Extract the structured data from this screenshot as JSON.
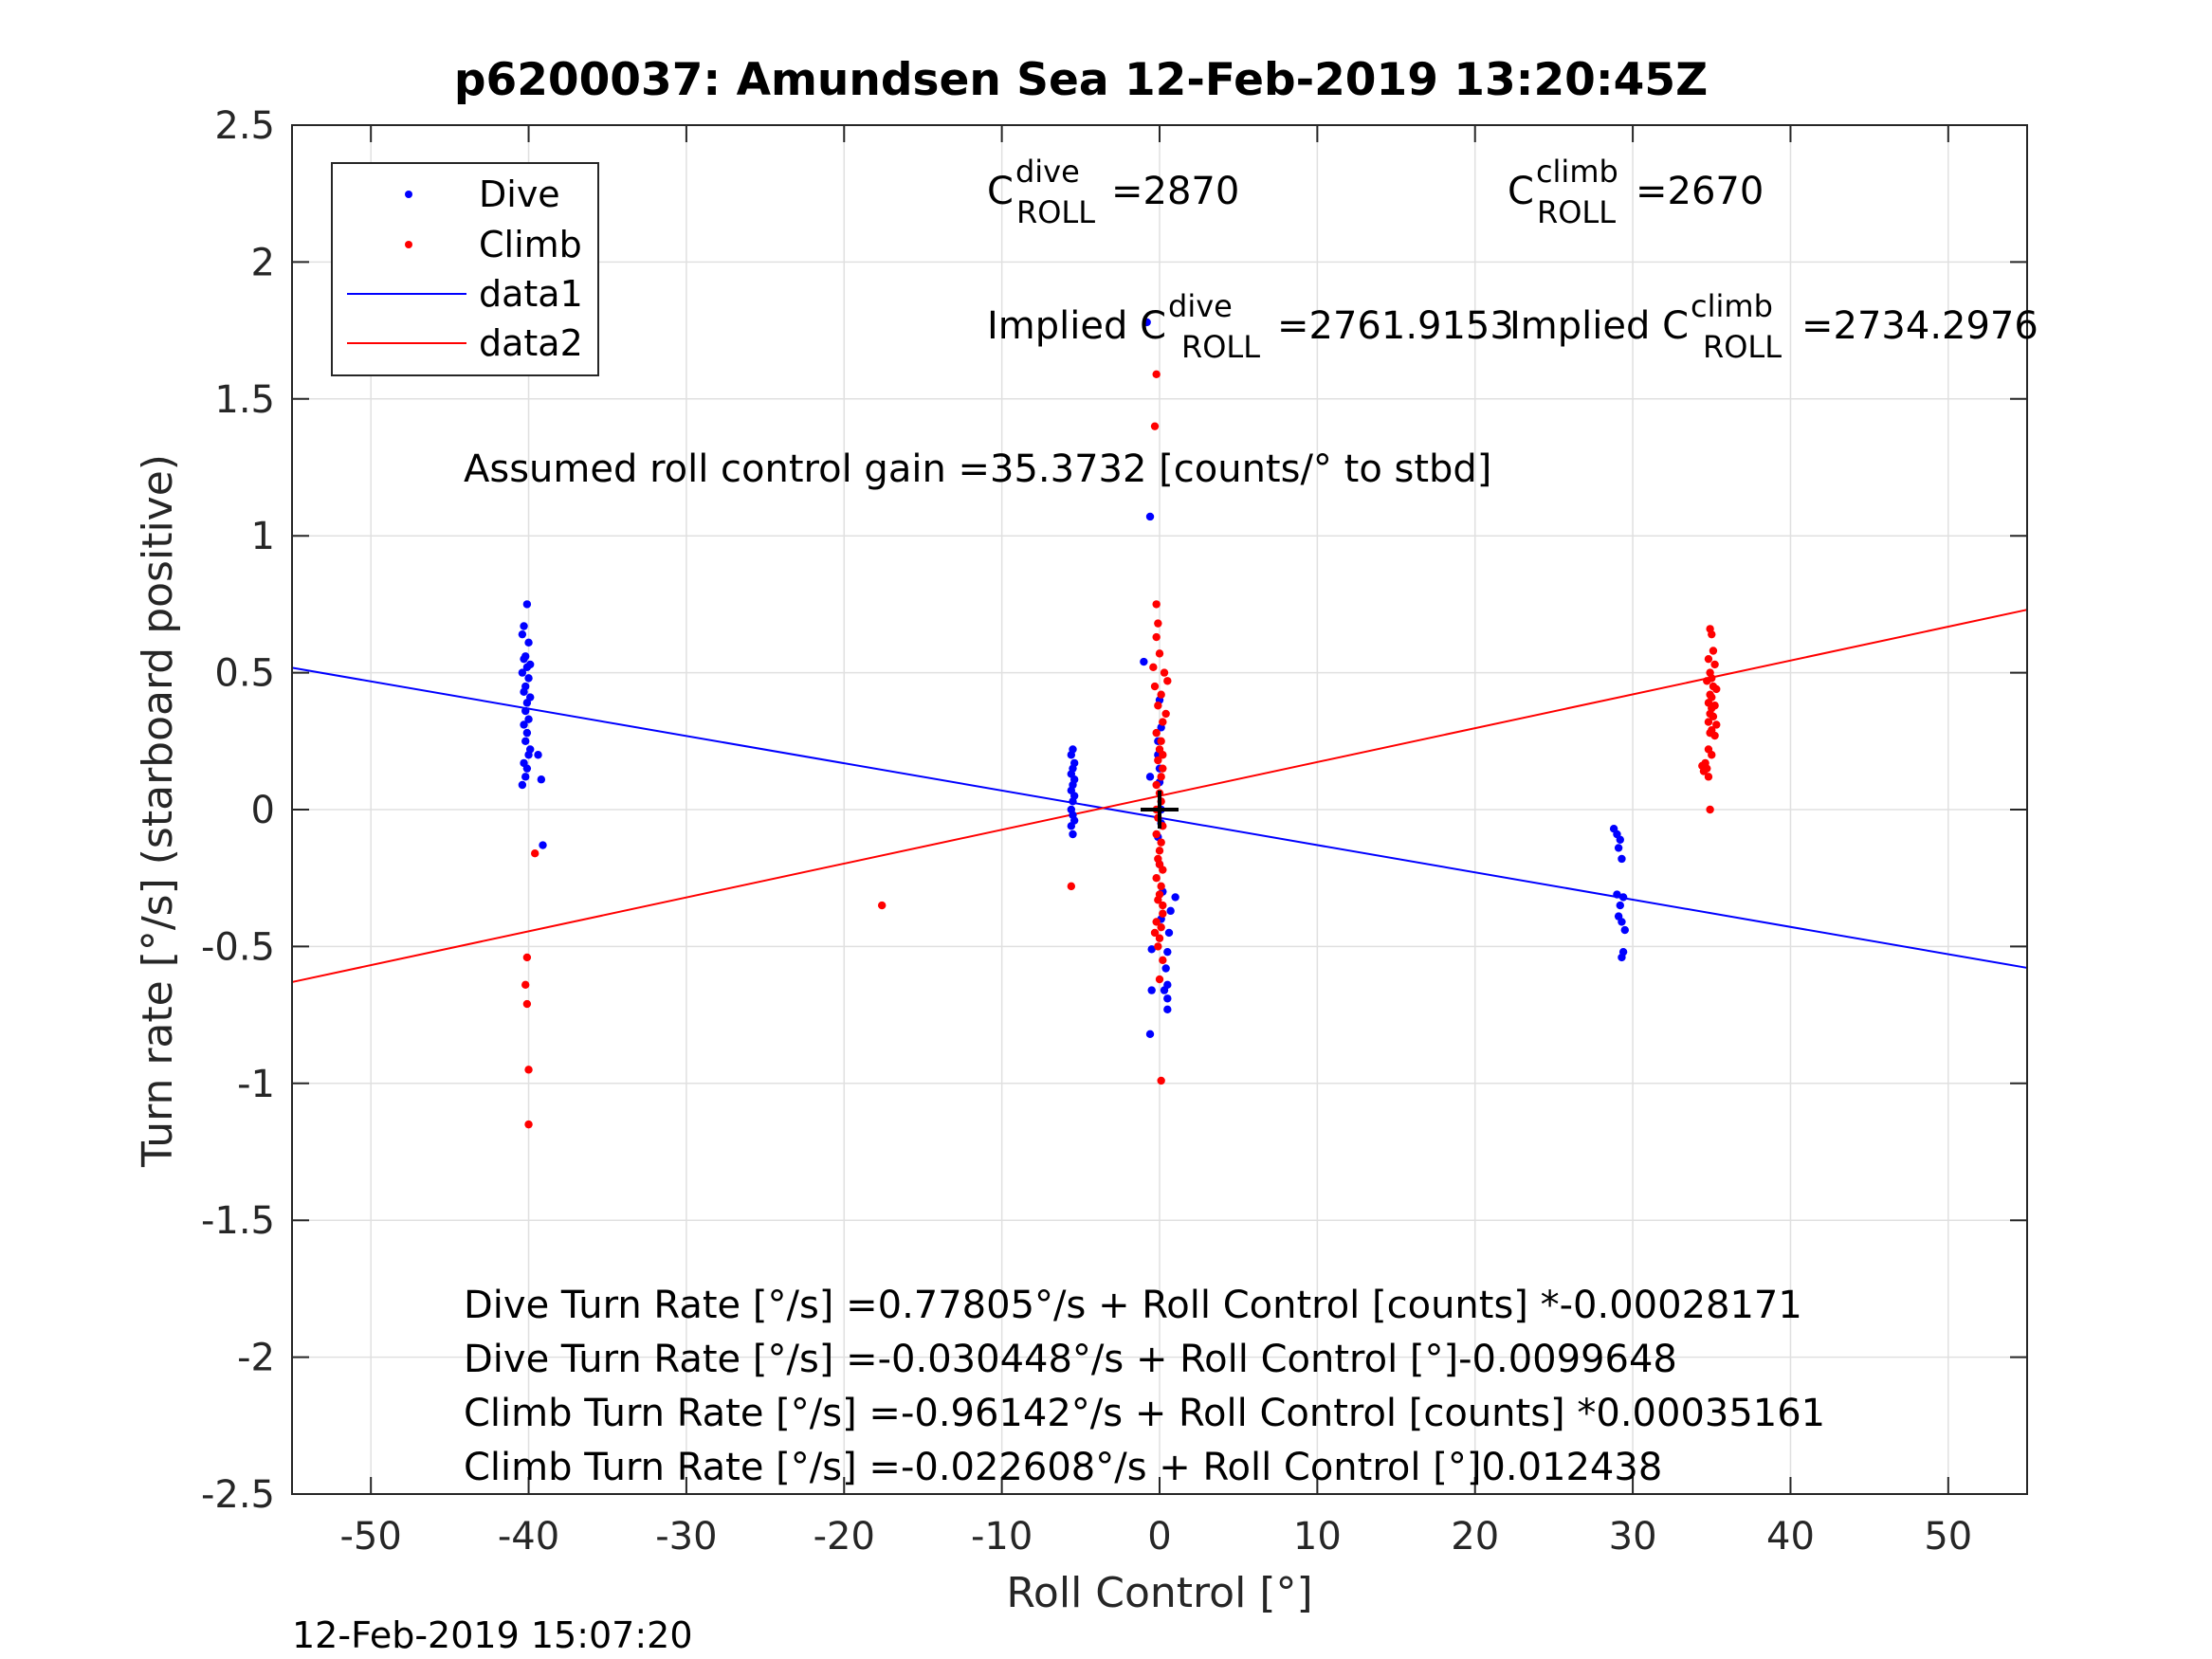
{
  "chart_data": {
    "type": "scatter",
    "title": "p6200037: Amundsen Sea 12-Feb-2019 13:20:45Z",
    "xlabel": "Roll Control [°]",
    "ylabel": "Turn rate [°/s] (starboard positive)",
    "xlim": [
      -55,
      55
    ],
    "ylim": [
      -2.5,
      2.5
    ],
    "xticks": [
      -50,
      -40,
      -30,
      -20,
      -10,
      0,
      10,
      20,
      30,
      40,
      50
    ],
    "xtick_labels": [
      "-50",
      "-40",
      "-30",
      "-20",
      "-10",
      "0",
      "10",
      "20",
      "30",
      "40",
      "50"
    ],
    "yticks": [
      2.5,
      2,
      1.5,
      1,
      0.5,
      0,
      -0.5,
      -1,
      -1.5,
      -2,
      -2.5
    ],
    "ytick_labels": [
      "2.5",
      "2",
      "1.5",
      "1",
      "0.5",
      "0",
      "-0.5",
      "-1",
      "-1.5",
      "-2",
      "-2.5"
    ],
    "grid": true,
    "legend_position": "top-left",
    "legend": [
      "Dive",
      "Climb",
      "data1",
      "data2"
    ],
    "colors": {
      "dive": "#0000ff",
      "climb": "#ff0000",
      "axes": "#262626",
      "grid": "#e0e0e0",
      "center_marker": "#000000"
    },
    "series": [
      {
        "name": "Dive",
        "kind": "scatter",
        "color": "#0000ff",
        "points": [
          [
            -40.1,
            0.75
          ],
          [
            -40.3,
            0.67
          ],
          [
            -40.4,
            0.64
          ],
          [
            -40.0,
            0.61
          ],
          [
            -40.2,
            0.56
          ],
          [
            -40.3,
            0.55
          ],
          [
            -39.9,
            0.53
          ],
          [
            -40.1,
            0.52
          ],
          [
            -40.4,
            0.5
          ],
          [
            -40.0,
            0.48
          ],
          [
            -40.2,
            0.45
          ],
          [
            -40.3,
            0.43
          ],
          [
            -39.9,
            0.41
          ],
          [
            -40.1,
            0.39
          ],
          [
            -40.2,
            0.36
          ],
          [
            -40.0,
            0.33
          ],
          [
            -40.3,
            0.31
          ],
          [
            -40.1,
            0.28
          ],
          [
            -40.2,
            0.25
          ],
          [
            -39.9,
            0.22
          ],
          [
            -40.0,
            0.2
          ],
          [
            -40.3,
            0.17
          ],
          [
            -40.1,
            0.15
          ],
          [
            -40.2,
            0.12
          ],
          [
            -40.4,
            0.09
          ],
          [
            -39.4,
            0.2
          ],
          [
            -39.2,
            0.11
          ],
          [
            -39.1,
            -0.13
          ],
          [
            -5.5,
            0.22
          ],
          [
            -5.6,
            0.2
          ],
          [
            -5.4,
            0.17
          ],
          [
            -5.5,
            0.15
          ],
          [
            -5.6,
            0.13
          ],
          [
            -5.4,
            0.11
          ],
          [
            -5.5,
            0.09
          ],
          [
            -5.6,
            0.07
          ],
          [
            -5.4,
            0.05
          ],
          [
            -5.5,
            0.03
          ],
          [
            -5.6,
            0.0
          ],
          [
            -5.5,
            -0.02
          ],
          [
            -5.4,
            -0.04
          ],
          [
            -5.6,
            -0.06
          ],
          [
            -5.5,
            -0.09
          ],
          [
            -1.0,
            0.54
          ],
          [
            -0.8,
            1.78
          ],
          [
            -0.6,
            1.07
          ],
          [
            -0.6,
            0.12
          ],
          [
            -0.5,
            -0.51
          ],
          [
            -0.5,
            -0.66
          ],
          [
            -0.6,
            -0.82
          ],
          [
            1.0,
            -0.32
          ],
          [
            0.7,
            -0.37
          ],
          [
            0.6,
            -0.45
          ],
          [
            0.5,
            -0.52
          ],
          [
            0.4,
            -0.58
          ],
          [
            0.5,
            -0.64
          ],
          [
            0.3,
            -0.66
          ],
          [
            0.5,
            -0.69
          ],
          [
            0.5,
            -0.73
          ],
          [
            0.0,
            0.4
          ],
          [
            0.1,
            0.3
          ],
          [
            -0.1,
            0.2
          ],
          [
            0.0,
            0.1
          ],
          [
            0.1,
            0.0
          ],
          [
            -0.1,
            -0.1
          ],
          [
            0.0,
            -0.2
          ],
          [
            0.2,
            -0.3
          ],
          [
            0.1,
            -0.4
          ],
          [
            -0.1,
            0.25
          ],
          [
            0.0,
            0.15
          ],
          [
            0.1,
            -0.05
          ],
          [
            28.8,
            -0.07
          ],
          [
            29.0,
            -0.09
          ],
          [
            29.2,
            -0.11
          ],
          [
            29.1,
            -0.14
          ],
          [
            29.3,
            -0.18
          ],
          [
            29.0,
            -0.31
          ],
          [
            29.4,
            -0.32
          ],
          [
            29.2,
            -0.35
          ],
          [
            29.1,
            -0.39
          ],
          [
            29.3,
            -0.41
          ],
          [
            29.5,
            -0.44
          ],
          [
            29.4,
            -0.52
          ],
          [
            29.3,
            -0.54
          ]
        ]
      },
      {
        "name": "Climb",
        "kind": "scatter",
        "color": "#ff0000",
        "points": [
          [
            -39.6,
            -0.16
          ],
          [
            -40.1,
            -0.54
          ],
          [
            -40.2,
            -0.64
          ],
          [
            -40.1,
            -0.71
          ],
          [
            -40.0,
            -0.95
          ],
          [
            -40.0,
            -1.15
          ],
          [
            -17.6,
            -0.35
          ],
          [
            -5.6,
            -0.28
          ],
          [
            -0.2,
            1.59
          ],
          [
            -0.3,
            1.4
          ],
          [
            -0.2,
            0.75
          ],
          [
            -0.1,
            0.68
          ],
          [
            -0.2,
            0.63
          ],
          [
            0.0,
            0.57
          ],
          [
            0.3,
            0.5
          ],
          [
            -0.3,
            0.45
          ],
          [
            -0.4,
            0.52
          ],
          [
            0.5,
            0.47
          ],
          [
            0.4,
            0.35
          ],
          [
            0.2,
            0.2
          ],
          [
            -0.2,
            0.0
          ],
          [
            0.0,
            -0.2
          ],
          [
            0.2,
            -0.35
          ],
          [
            -0.3,
            -0.45
          ],
          [
            0.2,
            -0.55
          ],
          [
            0.0,
            -0.62
          ],
          [
            0.1,
            -0.99
          ],
          [
            0.1,
            0.42
          ],
          [
            -0.1,
            0.38
          ],
          [
            0.2,
            0.32
          ],
          [
            -0.2,
            0.28
          ],
          [
            0.1,
            0.25
          ],
          [
            0.0,
            0.22
          ],
          [
            -0.1,
            0.18
          ],
          [
            0.2,
            0.15
          ],
          [
            0.1,
            0.12
          ],
          [
            -0.2,
            0.09
          ],
          [
            0.0,
            0.06
          ],
          [
            0.1,
            0.03
          ],
          [
            -0.1,
            -0.03
          ],
          [
            0.2,
            -0.06
          ],
          [
            -0.2,
            -0.09
          ],
          [
            0.1,
            -0.12
          ],
          [
            0.0,
            -0.15
          ],
          [
            -0.1,
            -0.18
          ],
          [
            0.2,
            -0.22
          ],
          [
            -0.2,
            -0.25
          ],
          [
            0.1,
            -0.28
          ],
          [
            0.0,
            -0.31
          ],
          [
            -0.1,
            -0.33
          ],
          [
            0.2,
            -0.38
          ],
          [
            -0.2,
            -0.41
          ],
          [
            0.1,
            -0.43
          ],
          [
            0.0,
            -0.47
          ],
          [
            -0.1,
            -0.5
          ],
          [
            34.9,
            0.66
          ],
          [
            35.0,
            0.64
          ],
          [
            35.1,
            0.58
          ],
          [
            34.8,
            0.55
          ],
          [
            35.2,
            0.53
          ],
          [
            34.9,
            0.5
          ],
          [
            35.0,
            0.48
          ],
          [
            34.7,
            0.47
          ],
          [
            35.1,
            0.45
          ],
          [
            35.3,
            0.44
          ],
          [
            34.9,
            0.42
          ],
          [
            35.0,
            0.41
          ],
          [
            34.8,
            0.39
          ],
          [
            35.2,
            0.38
          ],
          [
            35.0,
            0.37
          ],
          [
            34.9,
            0.35
          ],
          [
            35.1,
            0.34
          ],
          [
            34.8,
            0.32
          ],
          [
            35.3,
            0.31
          ],
          [
            35.0,
            0.29
          ],
          [
            34.9,
            0.28
          ],
          [
            35.2,
            0.27
          ],
          [
            34.8,
            0.22
          ],
          [
            35.0,
            0.2
          ],
          [
            34.6,
            0.17
          ],
          [
            34.4,
            0.16
          ],
          [
            34.7,
            0.15
          ],
          [
            34.5,
            0.14
          ],
          [
            34.8,
            0.12
          ],
          [
            34.9,
            0.0
          ]
        ]
      },
      {
        "name": "data1",
        "kind": "line",
        "color": "#0000ff",
        "points": [
          [
            -55,
            0.518
          ],
          [
            55,
            -0.578
          ]
        ]
      },
      {
        "name": "data2",
        "kind": "line",
        "color": "#ff0000",
        "points": [
          [
            -55,
            -0.63
          ],
          [
            55,
            0.73
          ]
        ]
      }
    ],
    "center_marker": [
      0,
      0
    ],
    "annotations": {
      "c_roll_dive": {
        "prefix": "C",
        "superscript": "dive",
        "subscript": "ROLL",
        "value": "=2870"
      },
      "c_roll_climb": {
        "prefix": "C",
        "superscript": "climb",
        "subscript": "ROLL",
        "value": "=2670"
      },
      "implied_dive": {
        "prefix": "Implied C",
        "superscript": "dive",
        "subscript": "ROLL",
        "value": "=2761.9153"
      },
      "implied_climb": {
        "prefix": "Implied C",
        "superscript": "climb",
        "subscript": "ROLL",
        "value": "=2734.2976"
      },
      "gain": "Assumed roll control gain =35.3732 [counts/° to stbd]",
      "equations": [
        "Dive Turn Rate [°/s] =0.77805°/s + Roll Control [counts] *-0.00028171",
        "Dive Turn Rate [°/s] =-0.030448°/s + Roll Control [°]-0.0099648",
        "Climb Turn Rate [°/s] =-0.96142°/s + Roll Control [counts] *0.00035161",
        "Climb Turn Rate [°/s] =-0.022608°/s + Roll Control [°]0.012438"
      ]
    },
    "timestamp": "12-Feb-2019 15:07:20"
  }
}
